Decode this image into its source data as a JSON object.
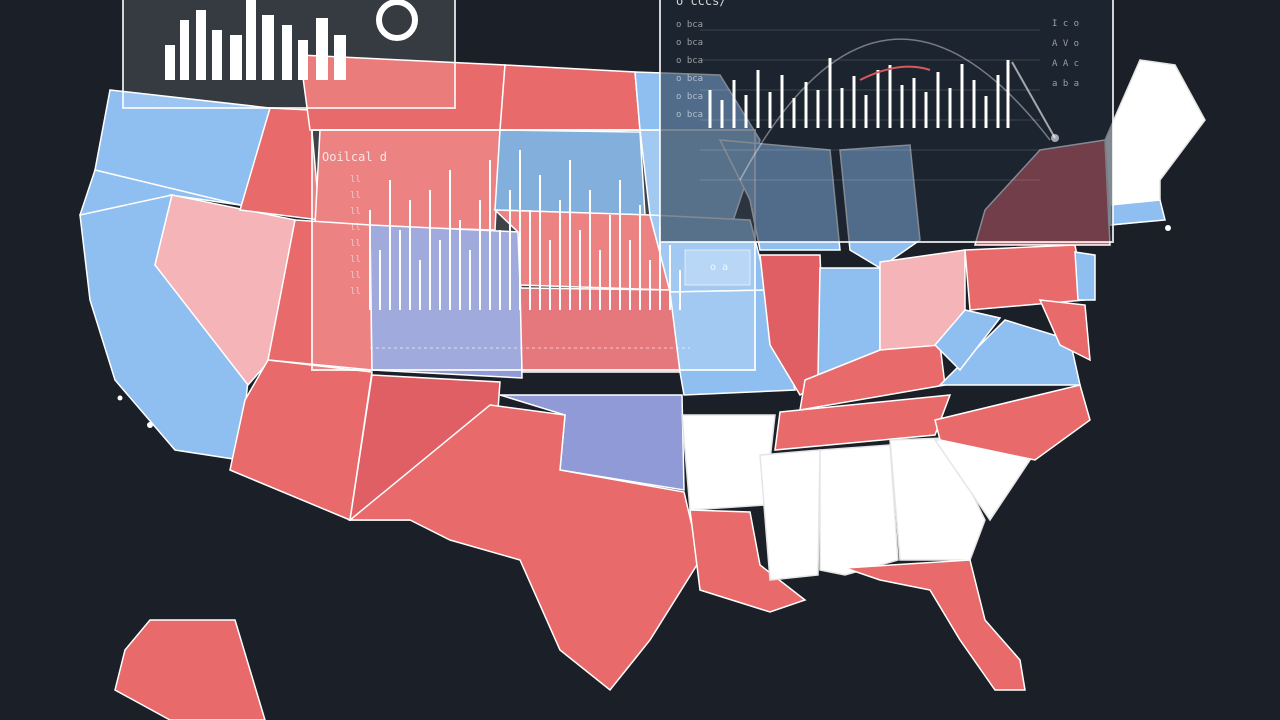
{
  "scene": {
    "description_type": "stylized map illustration",
    "background_color": "#1b1f27",
    "palette": {
      "red": "#e96a6a",
      "light_red": "#f4b4b8",
      "dark_red": "#d85a60",
      "blue": "#8fbff0",
      "violet": "#8f9ad6",
      "white": "#ffffff"
    }
  },
  "panels": {
    "center_label": "Ooilcal d",
    "top_right_label": "o cccs/",
    "center_ticks": [
      "ll",
      "ll",
      "ll",
      "ll",
      "ll",
      "ll",
      "ll",
      "ll"
    ],
    "right_ticks": [
      "o bca",
      "o bca",
      "o bca",
      "o bca",
      "o bca",
      "o bca"
    ],
    "far_right_ticks": [
      "I c o",
      "A V o",
      "A A c",
      "a b a"
    ],
    "chip_label": "o a"
  }
}
